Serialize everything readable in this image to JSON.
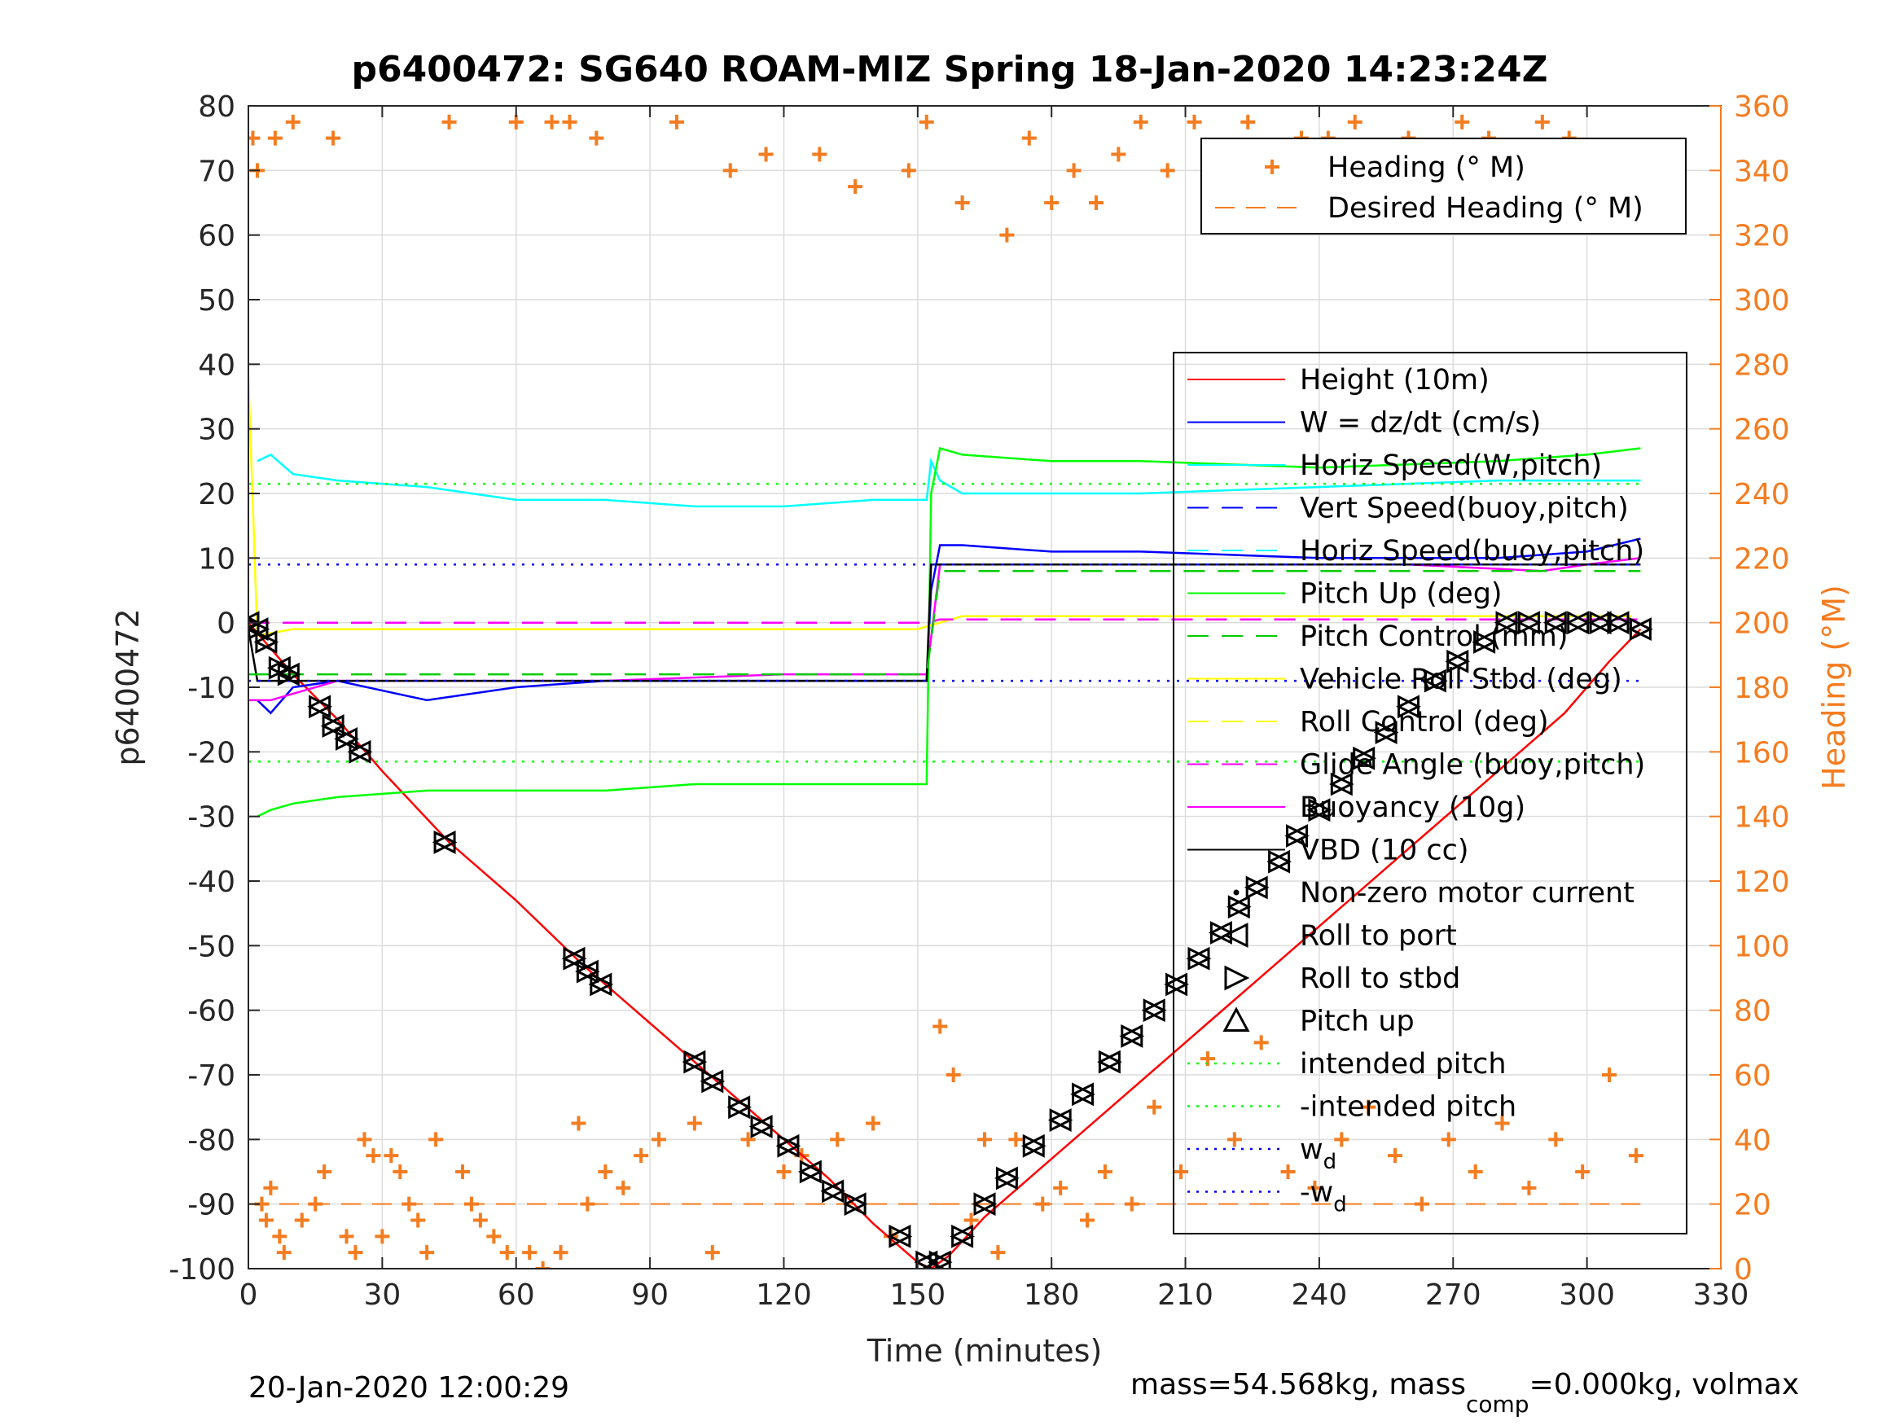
{
  "chart_data": {
    "type": "line",
    "title": "p6400472: SG640 ROAM-MIZ Spring 18-Jan-2020 14:23:24Z",
    "xlabel": "Time (minutes)",
    "ylabel": "p6400472",
    "y2label": "Heading (°M)",
    "xlim": [
      0,
      330
    ],
    "ylim": [
      -100,
      80
    ],
    "y2lim": [
      0,
      360
    ],
    "xticks": [
      "0",
      "30",
      "60",
      "90",
      "120",
      "150",
      "180",
      "210",
      "240",
      "270",
      "300",
      "330"
    ],
    "yticks": [
      "-100",
      "-90",
      "-80",
      "-70",
      "-60",
      "-50",
      "-40",
      "-30",
      "-20",
      "-10",
      "0",
      "10",
      "20",
      "30",
      "40",
      "50",
      "60",
      "70",
      "80"
    ],
    "y2ticks": [
      "0",
      "20",
      "40",
      "60",
      "80",
      "100",
      "120",
      "140",
      "160",
      "180",
      "200",
      "220",
      "240",
      "260",
      "280",
      "300",
      "320",
      "340",
      "360"
    ],
    "grid": true,
    "footer_left": "20-Jan-2020 12:00:29",
    "footer_right_prefix": "mass=54.568kg, mass",
    "footer_right_sub": "comp",
    "footer_right_suffix": "=0.000kg, volmax",
    "legend_heading": {
      "placement": "top-right",
      "entries": [
        {
          "label": "Heading (° M)",
          "style": "marker-plus",
          "color": "#f47c20"
        },
        {
          "label": "Desired Heading (° M)",
          "style": "dashed",
          "color": "#f47c20"
        }
      ]
    },
    "legend_main": {
      "placement": "center-right",
      "entries": [
        {
          "label": "Height (10m)",
          "style": "solid",
          "color": "#ff0000"
        },
        {
          "label": "W = dz/dt (cm/s)",
          "style": "solid",
          "color": "#0000ff"
        },
        {
          "label": "Horiz Speed(W,pitch)",
          "style": "solid",
          "color": "#00ffff"
        },
        {
          "label": "Vert Speed(buoy,pitch)",
          "style": "dashed",
          "color": "#0000ff"
        },
        {
          "label": "Horiz Speed(buoy,pitch)",
          "style": "dashed",
          "color": "#00ffff"
        },
        {
          "label": "Pitch Up (deg)",
          "style": "solid",
          "color": "#00ff00"
        },
        {
          "label": "Pitch Control (mm)",
          "style": "dashed",
          "color": "#00cc00"
        },
        {
          "label": "Vehicle Roll Stbd (deg)",
          "style": "solid",
          "color": "#ffff00"
        },
        {
          "label": "Roll Control (deg)",
          "style": "dashed",
          "color": "#ffff00"
        },
        {
          "label": "Glide Angle (buoy,pitch)",
          "style": "dashed",
          "color": "#ff00ff"
        },
        {
          "label": "Buoyancy (10g)",
          "style": "solid",
          "color": "#ff00ff"
        },
        {
          "label": "VBD (10 cc)",
          "style": "solid",
          "color": "#000000"
        },
        {
          "label": "Non-zero motor current",
          "style": "marker-dot",
          "color": "#000000"
        },
        {
          "label": "Roll to port",
          "style": "marker-tri-left",
          "color": "#000000"
        },
        {
          "label": "Roll to stbd",
          "style": "marker-tri-right",
          "color": "#000000"
        },
        {
          "label": "Pitch up",
          "style": "marker-tri-up",
          "color": "#000000"
        },
        {
          "label": "intended pitch",
          "style": "dotted",
          "color": "#00ff00"
        },
        {
          "label": "-intended pitch",
          "style": "dotted",
          "color": "#00ff00"
        },
        {
          "label": "w",
          "sub": "d",
          "style": "dotted",
          "color": "#0000ff"
        },
        {
          "label": "-w",
          "sub": "d",
          "style": "dotted",
          "color": "#0000ff"
        }
      ]
    },
    "series": [
      {
        "name": "Height (10m)",
        "color": "#ff0000",
        "x": [
          0,
          5,
          10,
          20,
          30,
          45,
          60,
          75,
          90,
          100,
          110,
          120,
          130,
          140,
          150,
          153,
          157,
          165,
          175,
          185,
          195,
          205,
          215,
          225,
          235,
          245,
          255,
          265,
          275,
          285,
          295,
          305,
          312
        ],
        "y": [
          0,
          -4,
          -8,
          -15,
          -23,
          -34,
          -43,
          -53,
          -62,
          -68,
          -74,
          -80,
          -86,
          -93,
          -99,
          -100,
          -98,
          -92,
          -86,
          -80,
          -74,
          -68,
          -62,
          -56,
          -50,
          -44,
          -38,
          -32,
          -26,
          -20,
          -14,
          -6,
          -1
        ]
      },
      {
        "name": "W = dz/dt (cm/s)",
        "color": "#0000ff",
        "x": [
          2,
          5,
          10,
          20,
          40,
          60,
          80,
          100,
          120,
          140,
          152,
          153,
          155,
          160,
          180,
          200,
          240,
          280,
          300,
          312
        ],
        "y": [
          -12,
          -14,
          -10,
          -9,
          -12,
          -10,
          -9,
          -9,
          -9,
          -9,
          -9,
          5,
          12,
          12,
          11,
          11,
          10,
          10,
          11,
          13
        ]
      },
      {
        "name": "Horiz Speed(W,pitch)",
        "color": "#00ffff",
        "x": [
          2,
          5,
          10,
          20,
          40,
          60,
          80,
          100,
          120,
          140,
          152,
          153,
          155,
          160,
          180,
          200,
          240,
          280,
          300,
          312
        ],
        "y": [
          25,
          26,
          23,
          22,
          21,
          19,
          19,
          18,
          18,
          19,
          19,
          25,
          22,
          20,
          20,
          20,
          21,
          22,
          22,
          22
        ]
      },
      {
        "name": "Pitch Up (deg)",
        "color": "#00ff00",
        "x": [
          2,
          5,
          10,
          20,
          40,
          60,
          80,
          100,
          120,
          140,
          152,
          153,
          155,
          160,
          180,
          200,
          240,
          280,
          300,
          312
        ],
        "y": [
          -30,
          -29,
          -28,
          -27,
          -26,
          -26,
          -26,
          -25,
          -25,
          -25,
          -25,
          20,
          27,
          26,
          25,
          25,
          24,
          25,
          26,
          27
        ]
      },
      {
        "name": "Vehicle Roll Stbd (deg)",
        "color": "#ffff00",
        "x": [
          0,
          2,
          10,
          30,
          60,
          90,
          120,
          150,
          160,
          200,
          240,
          280,
          310
        ],
        "y": [
          38,
          -2,
          -1,
          -1,
          -1,
          -1,
          -1,
          -1,
          1,
          1,
          1,
          1,
          1
        ]
      },
      {
        "name": "Buoyancy (10g)",
        "color": "#ff00ff",
        "x": [
          0,
          5,
          10,
          20,
          40,
          80,
          120,
          152,
          155,
          200,
          260,
          290,
          300,
          312
        ],
        "y": [
          -12,
          -12,
          -11,
          -9,
          -9,
          -9,
          -8,
          -8,
          9,
          9,
          9,
          8,
          9,
          10
        ]
      },
      {
        "name": "VBD (10 cc)",
        "color": "#000000",
        "x": [
          0,
          2,
          5,
          10,
          20,
          60,
          100,
          152,
          153,
          200,
          250,
          300,
          312
        ],
        "y": [
          -1,
          -9,
          -9,
          -9,
          -9,
          -9,
          -9,
          -9,
          9,
          9,
          9,
          9,
          9
        ]
      },
      {
        "name": "Glide Angle (buoy,pitch)",
        "color": "#ff00ff",
        "dash": true,
        "x": [
          0,
          152,
          155,
          312
        ],
        "y": [
          0,
          0,
          0.5,
          0.5
        ]
      },
      {
        "name": "Pitch Control (mm)",
        "color": "#00cc00",
        "dash": true,
        "x": [
          0,
          152,
          155,
          312
        ],
        "y": [
          -8,
          -8,
          8,
          8
        ]
      },
      {
        "name": "intended pitch",
        "color": "#00ff00",
        "dot": true,
        "x": [
          0,
          312
        ],
        "y": [
          21.5,
          21.5
        ]
      },
      {
        "name": "-intended pitch",
        "color": "#00ff00",
        "dot": true,
        "x": [
          0,
          312
        ],
        "y": [
          -21.5,
          -21.5
        ]
      },
      {
        "name": "w_d",
        "color": "#0000ff",
        "dot": true,
        "x": [
          0,
          312
        ],
        "y": [
          9,
          9
        ]
      },
      {
        "name": "-w_d",
        "color": "#0000ff",
        "dot": true,
        "x": [
          0,
          312
        ],
        "y": [
          -9,
          -9
        ]
      }
    ],
    "heading_desired": {
      "color": "#f47c20",
      "segments": [
        {
          "x": [
            0,
            155
          ],
          "y2": 20
        },
        {
          "x": [
            155,
            312
          ],
          "y2": 20
        }
      ]
    },
    "markers_roll": {
      "x": [
        0,
        2,
        4,
        7,
        9,
        16,
        19,
        22,
        25,
        44,
        73,
        76,
        79,
        100,
        104,
        110,
        115,
        121,
        126,
        131,
        136,
        146,
        152,
        155,
        160,
        165,
        170,
        176,
        182,
        187,
        193,
        198,
        203,
        208,
        213,
        218,
        222,
        226,
        231,
        235,
        240,
        245,
        250,
        255,
        260,
        266,
        271,
        277,
        282,
        287,
        293,
        298,
        303,
        307,
        312
      ],
      "y": [
        0,
        -1,
        -3,
        -7,
        -8,
        -13,
        -16,
        -18,
        -20,
        -34,
        -52,
        -54,
        -56,
        -68,
        -71,
        -75,
        -78,
        -81,
        -85,
        -88,
        -90,
        -95,
        -99,
        -99,
        -95,
        -90,
        -86,
        -81,
        -77,
        -73,
        -68,
        -64,
        -60,
        -56,
        -52,
        -48,
        -44,
        -41,
        -37,
        -33,
        -29,
        -25,
        -21,
        -17,
        -13,
        -9,
        -6,
        -3,
        0,
        0,
        0,
        0,
        0,
        0,
        -1
      ]
    },
    "heading_points": {
      "color": "#f47c20",
      "x": [
        1,
        2,
        3,
        4,
        5,
        6,
        7,
        8,
        10,
        12,
        15,
        17,
        19,
        22,
        24,
        26,
        28,
        30,
        32,
        34,
        36,
        38,
        40,
        42,
        45,
        48,
        50,
        52,
        55,
        58,
        60,
        63,
        66,
        68,
        70,
        72,
        74,
        76,
        78,
        80,
        84,
        88,
        92,
        96,
        100,
        104,
        108,
        112,
        116,
        120,
        124,
        128,
        132,
        136,
        140,
        144,
        148,
        152,
        155,
        158,
        160,
        162,
        165,
        168,
        170,
        172,
        175,
        178,
        180,
        182,
        185,
        188,
        190,
        192,
        195,
        198,
        200,
        203,
        206,
        209,
        212,
        215,
        218,
        221,
        224,
        227,
        230,
        233,
        236,
        239,
        242,
        245,
        248,
        251,
        254,
        257,
        260,
        263,
        266,
        269,
        272,
        275,
        278,
        281,
        284,
        287,
        290,
        293,
        296,
        299,
        302,
        305,
        308,
        311
      ],
      "y2": [
        350,
        340,
        20,
        15,
        25,
        350,
        10,
        5,
        355,
        15,
        20,
        30,
        350,
        10,
        5,
        40,
        35,
        10,
        35,
        30,
        20,
        15,
        5,
        40,
        355,
        30,
        20,
        15,
        10,
        5,
        355,
        5,
        0,
        355,
        5,
        355,
        45,
        20,
        350,
        30,
        25,
        35,
        40,
        355,
        45,
        5,
        340,
        40,
        345,
        30,
        35,
        345,
        40,
        335,
        45,
        10,
        340,
        355,
        75,
        60,
        330,
        15,
        40,
        5,
        320,
        40,
        350,
        20,
        330,
        25,
        340,
        15,
        330,
        30,
        345,
        20,
        355,
        50,
        340,
        30,
        355,
        65,
        340,
        40,
        355,
        70,
        345,
        30,
        350,
        25,
        350,
        40,
        355,
        50,
        345,
        35,
        350,
        20,
        345,
        40,
        355,
        30,
        350,
        45,
        345,
        25,
        355,
        40,
        350,
        30,
        345,
        60,
        340,
        35
      ]
    }
  }
}
